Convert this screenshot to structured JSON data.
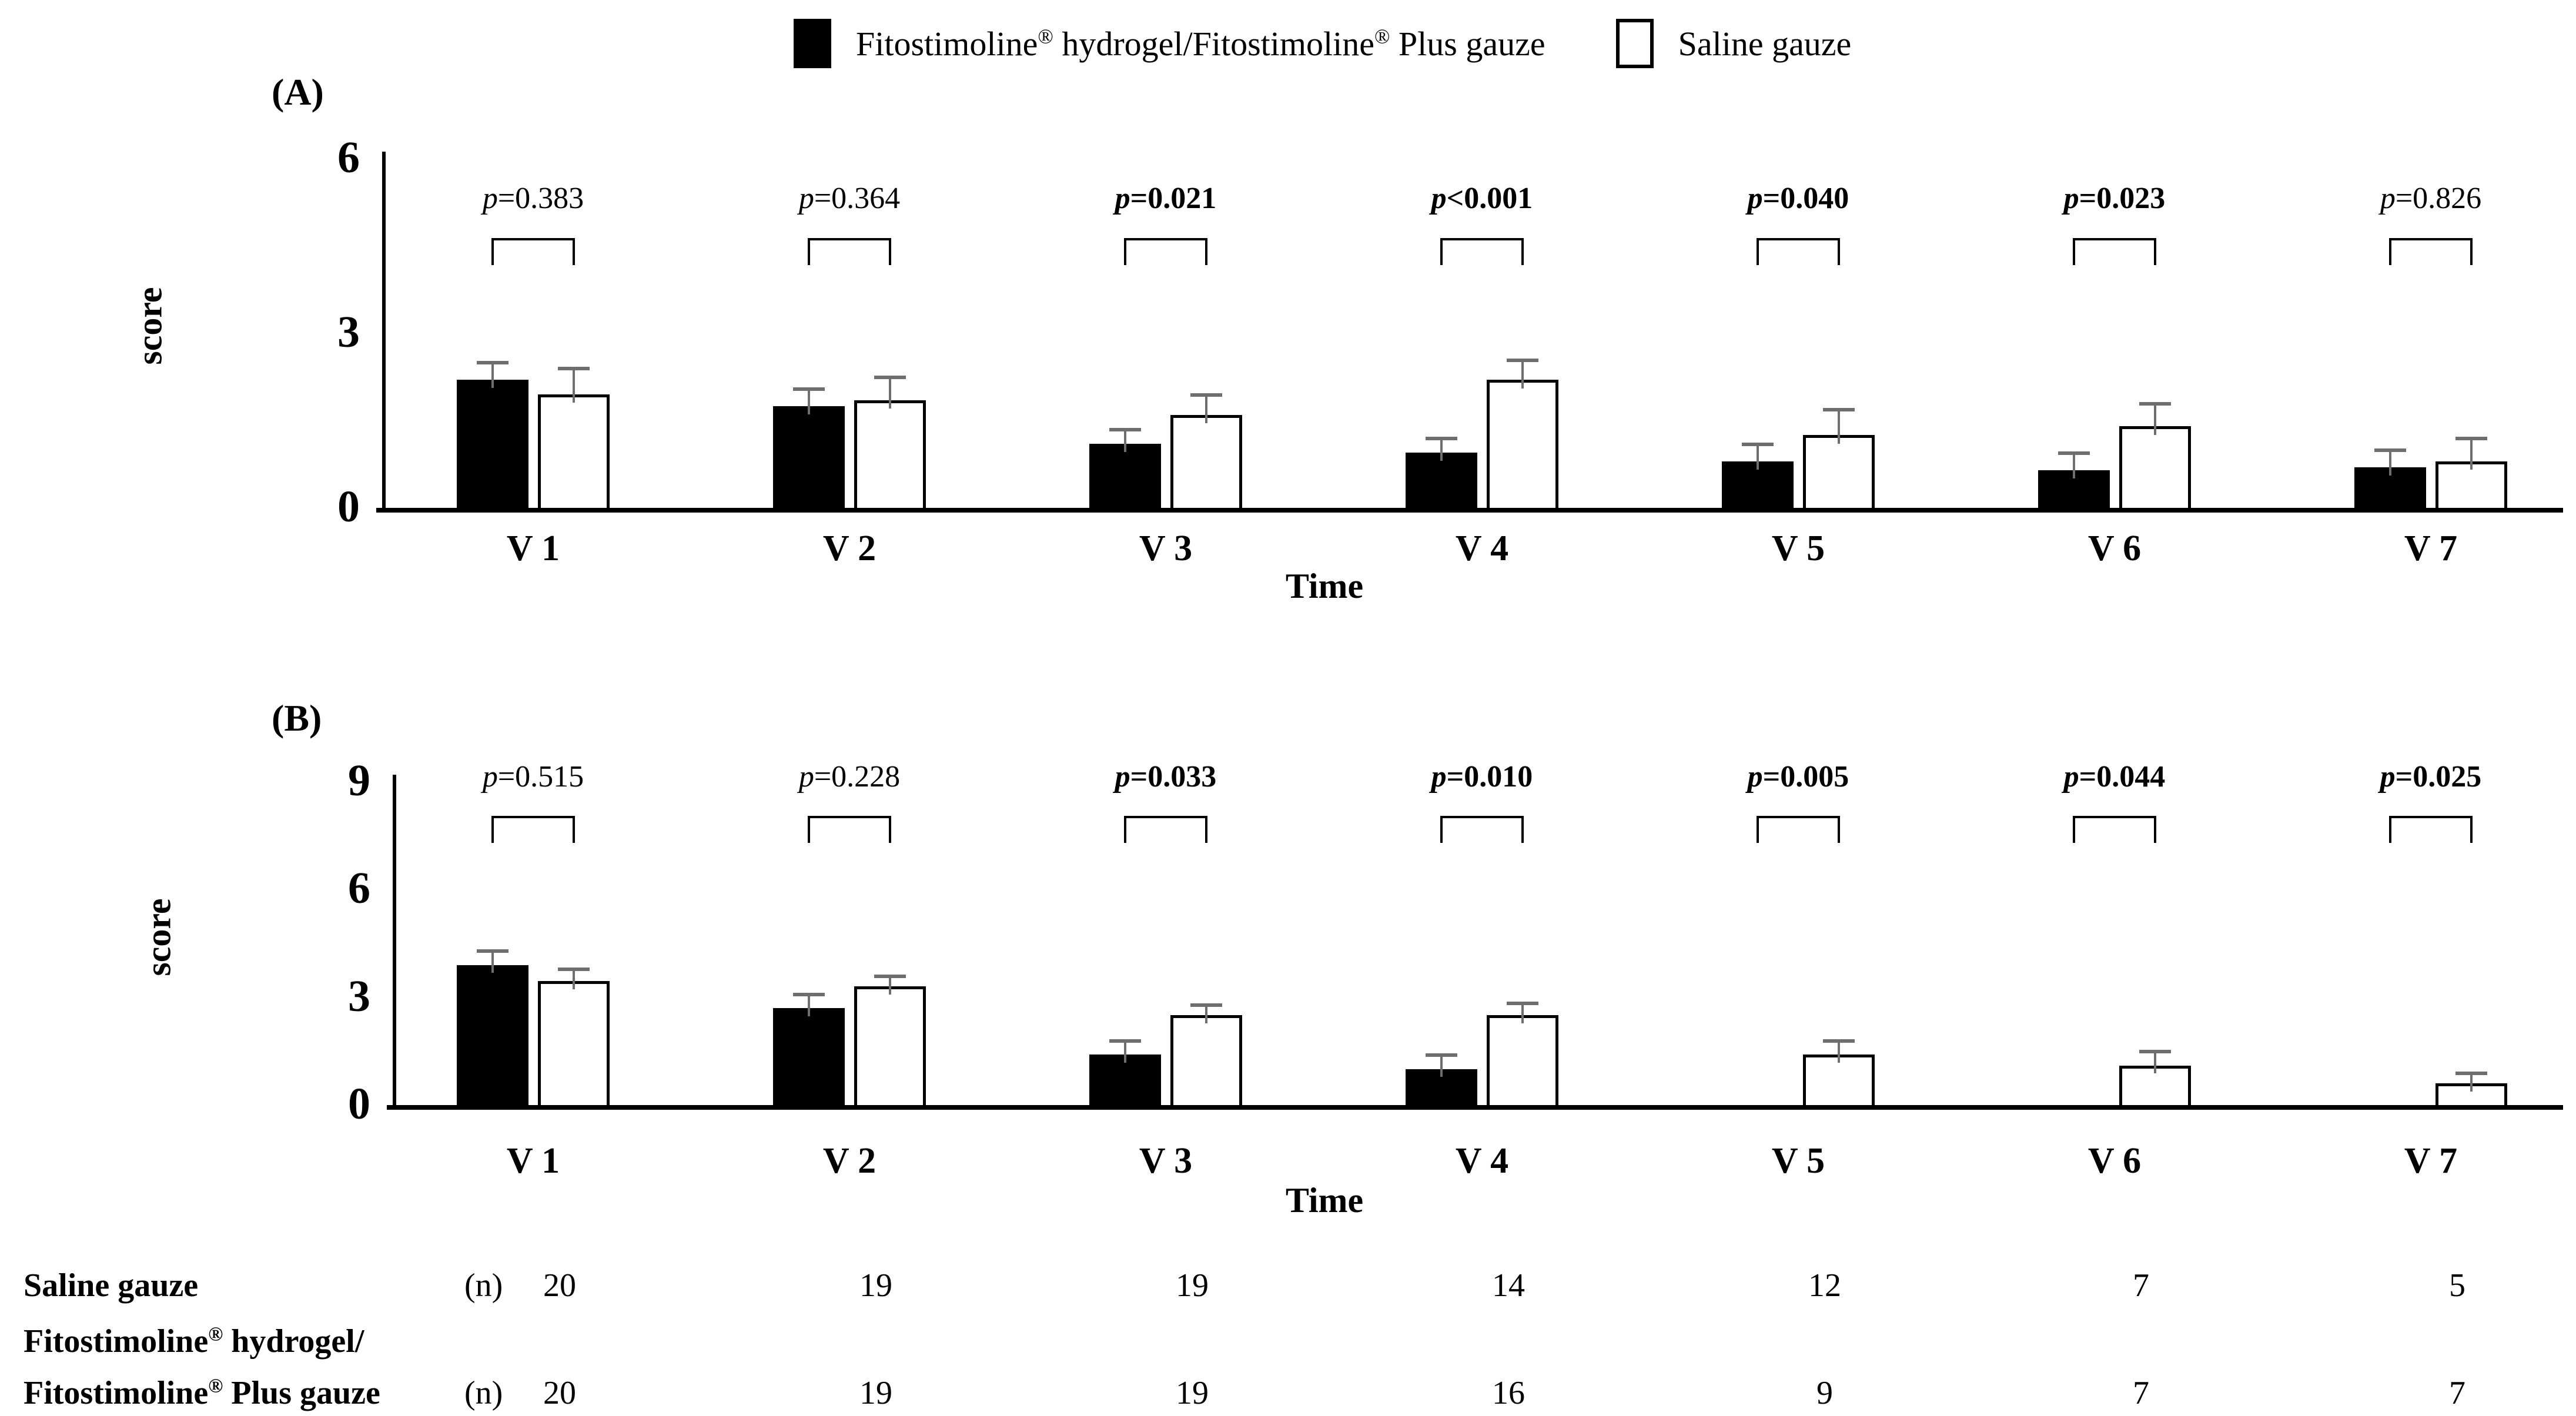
{
  "legend": {
    "items": [
      {
        "label": "Fitostimoline® hydrogel/Fitostimoline® Plus gauze",
        "swatch": "black"
      },
      {
        "label": "Saline gauze",
        "swatch": "white"
      }
    ]
  },
  "colors": {
    "bar_fill": "#000000",
    "bar_open": "#ffffff",
    "error_bar": "#6e6e6e",
    "axis": "#000000"
  },
  "chart_data": [
    {
      "type": "bar",
      "panel_label": "(A)",
      "xlabel": "Time",
      "ylabel": "score",
      "ylim": [
        0,
        6
      ],
      "yticks": [
        0,
        3,
        6
      ],
      "grid": false,
      "legend_position": "top-center",
      "categories": [
        "V 1",
        "V 2",
        "V 3",
        "V 4",
        "V 5",
        "V 6",
        "V 7"
      ],
      "series": [
        {
          "name": "Fitostimoline® hydrogel/Fitostimoline® Plus gauze",
          "color": "#000000",
          "values": [
            2.2,
            1.75,
            1.1,
            0.95,
            0.8,
            0.65,
            0.7
          ],
          "errors": [
            0.3,
            0.3,
            0.25,
            0.25,
            0.3,
            0.3,
            0.3
          ]
        },
        {
          "name": "Saline gauze",
          "color": "#ffffff",
          "values": [
            1.95,
            1.85,
            1.6,
            2.2,
            1.25,
            1.4,
            0.8
          ],
          "errors": [
            0.45,
            0.4,
            0.35,
            0.35,
            0.45,
            0.4,
            0.4
          ]
        }
      ],
      "p_values": [
        {
          "text": "p=0.383",
          "bold": false
        },
        {
          "text": "p=0.364",
          "bold": false
        },
        {
          "text": "p=0.021",
          "bold": true
        },
        {
          "text": "p<0.001",
          "bold": true
        },
        {
          "text": "p=0.040",
          "bold": true
        },
        {
          "text": "p=0.023",
          "bold": true
        },
        {
          "text": "p=0.826",
          "bold": false
        }
      ]
    },
    {
      "type": "bar",
      "panel_label": "(B)",
      "xlabel": "Time",
      "ylabel": "score",
      "ylim": [
        0,
        9
      ],
      "yticks": [
        0,
        3,
        6,
        9
      ],
      "grid": false,
      "legend_position": "top-center",
      "categories": [
        "V 1",
        "V 2",
        "V 3",
        "V 4",
        "V 5",
        "V 6",
        "V 7"
      ],
      "series": [
        {
          "name": "Fitostimoline® hydrogel/Fitostimoline® Plus gauze",
          "color": "#000000",
          "values": [
            3.9,
            2.7,
            1.4,
            1.0,
            0,
            0,
            0
          ],
          "errors": [
            0.4,
            0.4,
            0.4,
            0.4,
            0,
            0,
            0
          ]
        },
        {
          "name": "Saline gauze",
          "color": "#ffffff",
          "values": [
            3.45,
            3.3,
            2.5,
            2.5,
            1.4,
            1.1,
            0.6
          ],
          "errors": [
            0.35,
            0.3,
            0.3,
            0.35,
            0.4,
            0.4,
            0.3
          ]
        }
      ],
      "p_values": [
        {
          "text": "p=0.515",
          "bold": false
        },
        {
          "text": "p=0.228",
          "bold": false
        },
        {
          "text": "p=0.033",
          "bold": true
        },
        {
          "text": "p=0.010",
          "bold": true
        },
        {
          "text": "p=0.005",
          "bold": true
        },
        {
          "text": "p=0.044",
          "bold": true
        },
        {
          "text": "p=0.025",
          "bold": true
        }
      ]
    }
  ],
  "table": {
    "unit": "(n)",
    "rows": [
      {
        "label_lines": [
          "Saline gauze"
        ],
        "values": [
          "20",
          "19",
          "19",
          "14",
          "12",
          "7",
          "5"
        ]
      },
      {
        "label_lines": [
          "Fitostimoline® hydrogel/",
          "Fitostimoline® Plus gauze"
        ],
        "values": [
          "20",
          "19",
          "19",
          "16",
          "9",
          "7",
          "7"
        ]
      }
    ]
  }
}
